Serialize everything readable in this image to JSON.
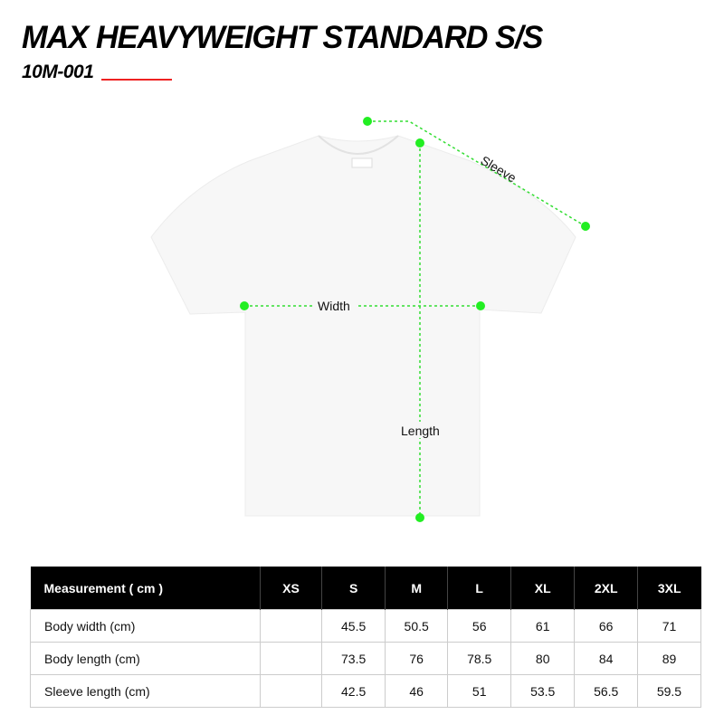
{
  "title": "MAX HEAVYWEIGHT STANDARD S/S",
  "code": "10M-001",
  "accent_color": "#ee2222",
  "measure_color": "#22ee22",
  "diagram": {
    "sleeve": "Sleeve",
    "width": "Width",
    "length": "Length"
  },
  "table": {
    "headers": [
      "Measurement ( cm )",
      "XS",
      "S",
      "M",
      "L",
      "XL",
      "2XL",
      "3XL"
    ],
    "rows": [
      [
        "Body width (cm)",
        "",
        "45.5",
        "50.5",
        "56",
        "61",
        "66",
        "71"
      ],
      [
        "Body length (cm)",
        "",
        "73.5",
        "76",
        "78.5",
        "80",
        "84",
        "89"
      ],
      [
        "Sleeve length (cm)",
        "",
        "42.5",
        "46",
        "51",
        "53.5",
        "56.5",
        "59.5"
      ]
    ]
  }
}
